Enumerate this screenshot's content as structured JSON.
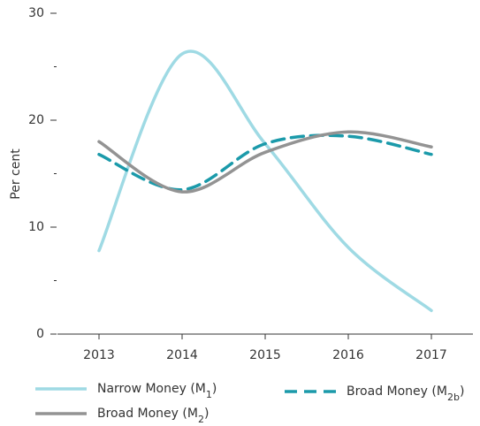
{
  "chart_data": {
    "type": "line",
    "y_label": "Per cent",
    "x": [
      2013,
      2014,
      2015,
      2016,
      2017
    ],
    "xlim": [
      2012.5,
      2017.5
    ],
    "xticks": [
      2013,
      2014,
      2015,
      2016,
      2017
    ],
    "ylim": [
      0,
      30
    ],
    "yticks": [
      0,
      10,
      20,
      30
    ],
    "minor_yticks": [
      5,
      15,
      25
    ],
    "series": [
      {
        "name": "Narrow Money (M1)",
        "color": "#9fdae4",
        "style": "solid",
        "values": [
          7.8,
          26.2,
          17.8,
          8.1,
          2.2
        ]
      },
      {
        "name": "Broad Money (M2b)",
        "color": "#1b9aaa",
        "style": "dashed",
        "values": [
          16.8,
          13.5,
          17.8,
          18.5,
          16.8
        ]
      },
      {
        "name": "Broad Money (M2)",
        "color": "#939393",
        "style": "solid",
        "values": [
          18.0,
          13.3,
          17.0,
          18.9,
          17.5
        ]
      }
    ]
  }
}
